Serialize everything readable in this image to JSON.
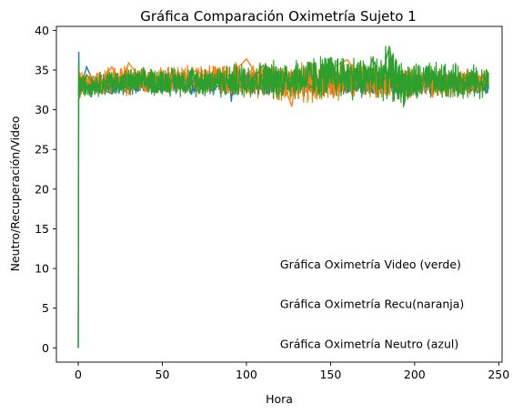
{
  "chart_data": {
    "type": "line",
    "title": "Gráfica Comparación Oximetría Sujeto 1",
    "xlabel": "Hora",
    "ylabel": "Neutro/Recuperación/Video",
    "xlim": [
      -13,
      252
    ],
    "ylim": [
      -1.8,
      40.5
    ],
    "xticks": [
      0,
      50,
      100,
      150,
      200,
      250
    ],
    "yticks": [
      0,
      5,
      10,
      15,
      20,
      25,
      30,
      35,
      40
    ],
    "grid": false,
    "legend": "none",
    "series": [
      {
        "color": "#1f77b4",
        "x": [
          0,
          0.3,
          0.6,
          2,
          5,
          10,
          20,
          30,
          40,
          50,
          60,
          70,
          80,
          90,
          91,
          92,
          100,
          110,
          120,
          130,
          140,
          150,
          160,
          170,
          180,
          190,
          200,
          210,
          220,
          230,
          240,
          244
        ],
        "y": [
          0,
          37.3,
          31.6,
          33.2,
          35.4,
          33.0,
          32.0,
          34.5,
          33.2,
          32.5,
          34.1,
          33.5,
          32.4,
          34.4,
          31.0,
          33.6,
          33.3,
          32.5,
          34.2,
          33.8,
          32.1,
          33.6,
          34.0,
          32.8,
          33.7,
          33.1,
          33.4,
          32.9,
          33.5,
          33.0,
          33.4,
          33.3
        ],
        "band": [
          [
            0,
            31.8,
            34.5
          ],
          [
            10,
            31.7,
            34.6
          ],
          [
            50,
            31.8,
            34.8
          ],
          [
            100,
            31.7,
            35.0
          ],
          [
            150,
            31.8,
            35.2
          ],
          [
            200,
            31.7,
            35.0
          ],
          [
            244,
            31.8,
            34.8
          ]
        ]
      },
      {
        "color": "#ff7f0e",
        "x": [
          0,
          1,
          2,
          5,
          10,
          20,
          25,
          30,
          40,
          50,
          60,
          70,
          80,
          90,
          100,
          110,
          120,
          127,
          130,
          140,
          150,
          160,
          170,
          180,
          190,
          200,
          210,
          220,
          230,
          240,
          244
        ],
        "y": [
          33.0,
          31.5,
          33.1,
          34.0,
          32.5,
          35.4,
          33.2,
          35.9,
          33.0,
          34.1,
          32.7,
          35.0,
          33.4,
          34.2,
          36.4,
          33.1,
          34.5,
          30.4,
          34.8,
          32.9,
          35.2,
          36.3,
          33.4,
          34.0,
          32.8,
          33.9,
          33.2,
          34.3,
          33.0,
          33.6,
          33.2
        ],
        "band": [
          [
            0,
            31.6,
            34.8
          ],
          [
            20,
            31.5,
            35.9
          ],
          [
            50,
            31.8,
            35.6
          ],
          [
            100,
            31.6,
            36.2
          ],
          [
            130,
            30.4,
            36.0
          ],
          [
            160,
            31.0,
            36.3
          ],
          [
            200,
            31.4,
            35.4
          ],
          [
            244,
            31.6,
            35.2
          ]
        ]
      },
      {
        "color": "#2ca02c",
        "x": [
          0,
          0.25,
          0.5,
          1,
          2,
          5,
          10,
          20,
          30,
          40,
          50,
          60,
          70,
          80,
          90,
          100,
          110,
          120,
          130,
          140,
          150,
          155,
          160,
          170,
          175,
          180,
          185,
          190,
          195,
          200,
          210,
          220,
          230,
          240,
          244
        ],
        "y": [
          0,
          36.0,
          31.4,
          34.2,
          32.4,
          34.4,
          33.0,
          34.0,
          32.6,
          33.8,
          33.0,
          34.1,
          32.8,
          34.0,
          33.4,
          32.6,
          35.6,
          33.1,
          34.5,
          32.6,
          36.5,
          33.4,
          35.0,
          32.8,
          36.4,
          33.6,
          38.0,
          31.6,
          34.2,
          33.0,
          34.6,
          32.6,
          34.0,
          33.2,
          33.1
        ],
        "band": [
          [
            0,
            31.4,
            34.6
          ],
          [
            20,
            31.6,
            35.2
          ],
          [
            50,
            31.6,
            35.6
          ],
          [
            80,
            31.4,
            35.8
          ],
          [
            100,
            31.2,
            36.2
          ],
          [
            120,
            31.0,
            36.6
          ],
          [
            140,
            31.0,
            37.2
          ],
          [
            155,
            31.2,
            37.4
          ],
          [
            170,
            30.8,
            37.0
          ],
          [
            185,
            31.0,
            38.2
          ],
          [
            192,
            30.0,
            36.5
          ],
          [
            210,
            31.0,
            36.2
          ],
          [
            230,
            31.2,
            36.0
          ],
          [
            244,
            31.3,
            35.6
          ]
        ]
      }
    ],
    "annotations": [
      {
        "text": "Gráfica Oximetría Video (verde)",
        "x": 120,
        "y": 10
      },
      {
        "text": "Gráfica Oximetría Recu(naranja)",
        "x": 120,
        "y": 5
      },
      {
        "text": "Gráfica Oximetría Neutro (azul)",
        "x": 120,
        "y": 0
      }
    ]
  }
}
